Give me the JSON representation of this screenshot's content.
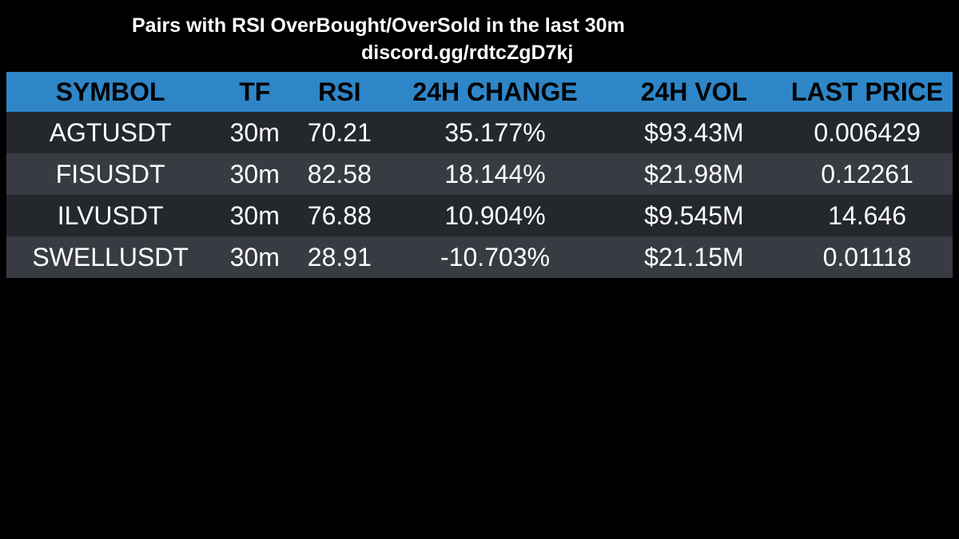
{
  "header": {
    "title": "Pairs with RSI OverBought/OverSold in the last 30m",
    "subtitle": "discord.gg/rdtcZgD7kj"
  },
  "table": {
    "columns": [
      "SYMBOL",
      "TF",
      "RSI",
      "24H CHANGE",
      "24H VOL",
      "LAST PRICE"
    ],
    "rows": [
      [
        "AGTUSDT",
        "30m",
        "70.21",
        "35.177%",
        "$93.43M",
        "0.006429"
      ],
      [
        "FISUSDT",
        "30m",
        "82.58",
        "18.144%",
        "$21.98M",
        "0.12261"
      ],
      [
        "ILVUSDT",
        "30m",
        "76.88",
        "10.904%",
        "$9.545M",
        "14.646"
      ],
      [
        "SWELLUSDT",
        "30m",
        "28.91",
        "-10.703%",
        "$21.15M",
        "0.01118"
      ]
    ]
  }
}
